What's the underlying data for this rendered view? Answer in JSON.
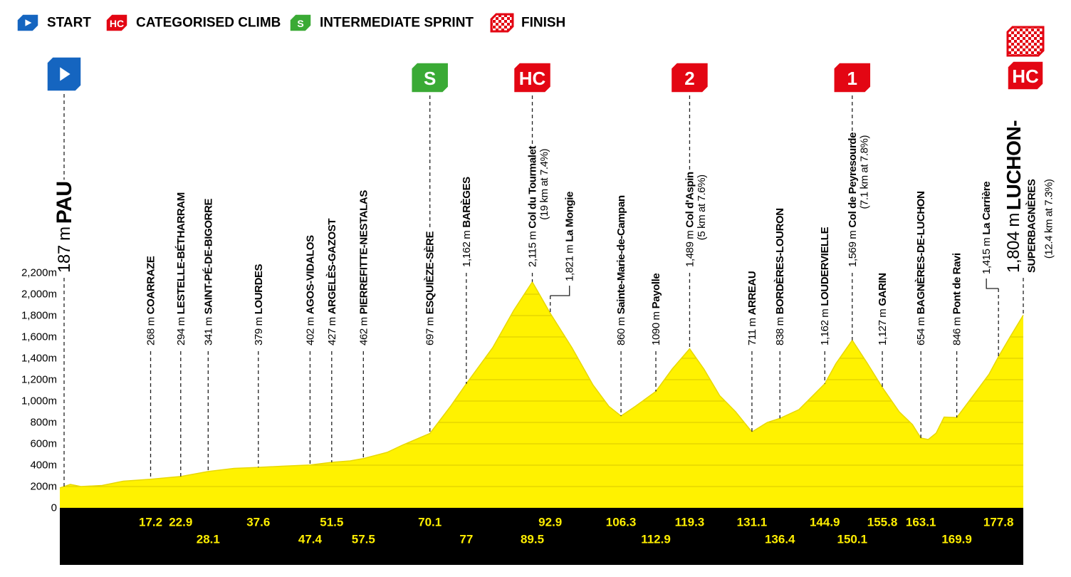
{
  "legend": [
    {
      "name": "START"
    },
    {
      "name": "CATEGORISED CLIMB",
      "badge": "HC"
    },
    {
      "name": "INTERMEDIATE SPRINT",
      "badge": "S"
    },
    {
      "name": "FINISH"
    }
  ],
  "chart_data": {
    "type": "area",
    "color": "#fff200",
    "grid": true,
    "xlim": [
      0,
      182.5
    ],
    "ylim": [
      0,
      2200
    ],
    "yticks": [
      {
        "value": 0,
        "label": "0"
      },
      {
        "value": 200,
        "label": "200m"
      },
      {
        "value": 400,
        "label": "400m"
      },
      {
        "value": 600,
        "label": "600m"
      },
      {
        "value": 800,
        "label": "800m"
      },
      {
        "value": 1000,
        "label": "1,000m"
      },
      {
        "value": 1200,
        "label": "1,200m"
      },
      {
        "value": 1400,
        "label": "1,400m"
      },
      {
        "value": 1600,
        "label": "1,600m"
      },
      {
        "value": 1800,
        "label": "1,800m"
      },
      {
        "value": 2000,
        "label": "2,000m"
      },
      {
        "value": 2200,
        "label": "2,200m"
      }
    ],
    "series": [
      {
        "x": [
          0,
          2,
          4,
          8,
          12,
          17.2,
          22.9,
          28.1,
          33,
          37.6,
          42,
          47.4,
          51.5,
          55,
          57.5,
          62,
          65,
          70.1,
          74,
          77,
          82,
          86,
          89.5,
          92.9,
          97,
          101,
          104,
          106.3,
          109,
          112.9,
          116,
          119.3,
          122,
          125,
          128,
          131.1,
          134,
          136.4,
          140,
          144.9,
          147,
          150.1,
          153,
          155.8,
          159,
          161.5,
          163.1,
          164.5,
          166,
          167.5,
          169.9,
          173,
          176,
          177.8,
          180,
          182.5
        ],
        "values": [
          187,
          220,
          200,
          210,
          250,
          268,
          294,
          341,
          370,
          379,
          390,
          402,
          427,
          440,
          462,
          520,
          590,
          697,
          950,
          1162,
          1500,
          1850,
          2115,
          1821,
          1500,
          1150,
          950,
          860,
          950,
          1090,
          1300,
          1489,
          1300,
          1050,
          900,
          711,
          800,
          838,
          920,
          1162,
          1350,
          1569,
          1350,
          1127,
          900,
          780,
          654,
          640,
          700,
          850,
          846,
          1050,
          1250,
          1415,
          1600,
          1804
        ]
      }
    ],
    "start": {
      "altitude": {
        "value": 187,
        "label": "187 m"
      },
      "name": "PAU"
    },
    "finish": {
      "altitude": {
        "value": 1804,
        "label": "1,804 m"
      },
      "name_lines": [
        "LUCHON-",
        "SUPERBAGNÈRES"
      ],
      "detail": "(12.4 km at 7.3%)",
      "badge": "HC"
    },
    "waypoints": [
      {
        "km": 17.2,
        "altitude": {
          "value": 268,
          "label": "268 m"
        },
        "name": "COARRAZE"
      },
      {
        "km": 22.9,
        "altitude": {
          "value": 294,
          "label": "294 m"
        },
        "name": "LESTELLE-BÉTHARRAM"
      },
      {
        "km": 28.1,
        "altitude": {
          "value": 341,
          "label": "341 m"
        },
        "name": "SAINT-PÉ-DE-BIGORRE"
      },
      {
        "km": 37.6,
        "altitude": {
          "value": 379,
          "label": "379 m"
        },
        "name": "LOURDES"
      },
      {
        "km": 47.4,
        "altitude": {
          "value": 402,
          "label": "402 m"
        },
        "name": "AGOS-VIDALOS"
      },
      {
        "km": 51.5,
        "altitude": {
          "value": 427,
          "label": "427 m"
        },
        "name": "ARGELÈS-GAZOST"
      },
      {
        "km": 57.5,
        "altitude": {
          "value": 462,
          "label": "462 m"
        },
        "name": "PIERREFITTE-NESTALAS"
      },
      {
        "km": 70.1,
        "altitude": {
          "value": 697,
          "label": "697 m"
        },
        "name": "ESQUIÈZE-SÈRE",
        "badge": "S"
      },
      {
        "km": 77,
        "altitude": {
          "value": 1162,
          "label": "1,162 m"
        },
        "name": "BARÈGES"
      },
      {
        "km": 89.5,
        "altitude": {
          "value": 2115,
          "label": "2,115 m"
        },
        "name": "Col du Tourmalet",
        "detail": "(19 km at 7.4%)",
        "badge": "HC"
      },
      {
        "km": 92.9,
        "altitude": {
          "value": 1821,
          "label": "1,821 m"
        },
        "name": "La Mongie"
      },
      {
        "km": 106.3,
        "altitude": {
          "value": 860,
          "label": "860 m"
        },
        "name": "Sainte-Marie-de-Campan"
      },
      {
        "km": 112.9,
        "altitude": {
          "value": 1090,
          "label": "1090 m"
        },
        "name": "Payolle"
      },
      {
        "km": 119.3,
        "altitude": {
          "value": 1489,
          "label": "1,489 m"
        },
        "name": "Col d'Aspin",
        "detail": "(5 km at 7.6%)",
        "badge": "2"
      },
      {
        "km": 131.1,
        "altitude": {
          "value": 711,
          "label": "711 m"
        },
        "name": "ARREAU"
      },
      {
        "km": 136.4,
        "altitude": {
          "value": 838,
          "label": "838 m"
        },
        "name": "BORDÈRES-LOURON"
      },
      {
        "km": 144.9,
        "altitude": {
          "value": 1162,
          "label": "1,162 m"
        },
        "name": "LOUDERVIELLE"
      },
      {
        "km": 150.1,
        "altitude": {
          "value": 1569,
          "label": "1,569 m"
        },
        "name": "Col de Peyresourde",
        "detail": "(7.1 km at 7.8%)",
        "badge": "1"
      },
      {
        "km": 155.8,
        "altitude": {
          "value": 1127,
          "label": "1,127 m"
        },
        "name": "GARIN"
      },
      {
        "km": 163.1,
        "altitude": {
          "value": 654,
          "label": "654 m"
        },
        "name": "BAGNÈRES-DE-LUCHON"
      },
      {
        "km": 169.9,
        "altitude": {
          "value": 846,
          "label": "846 m"
        },
        "name": "Pont de Ravi"
      },
      {
        "km": 177.8,
        "altitude": {
          "value": 1415,
          "label": "1,415 m"
        },
        "name": "La Carrière"
      }
    ]
  }
}
